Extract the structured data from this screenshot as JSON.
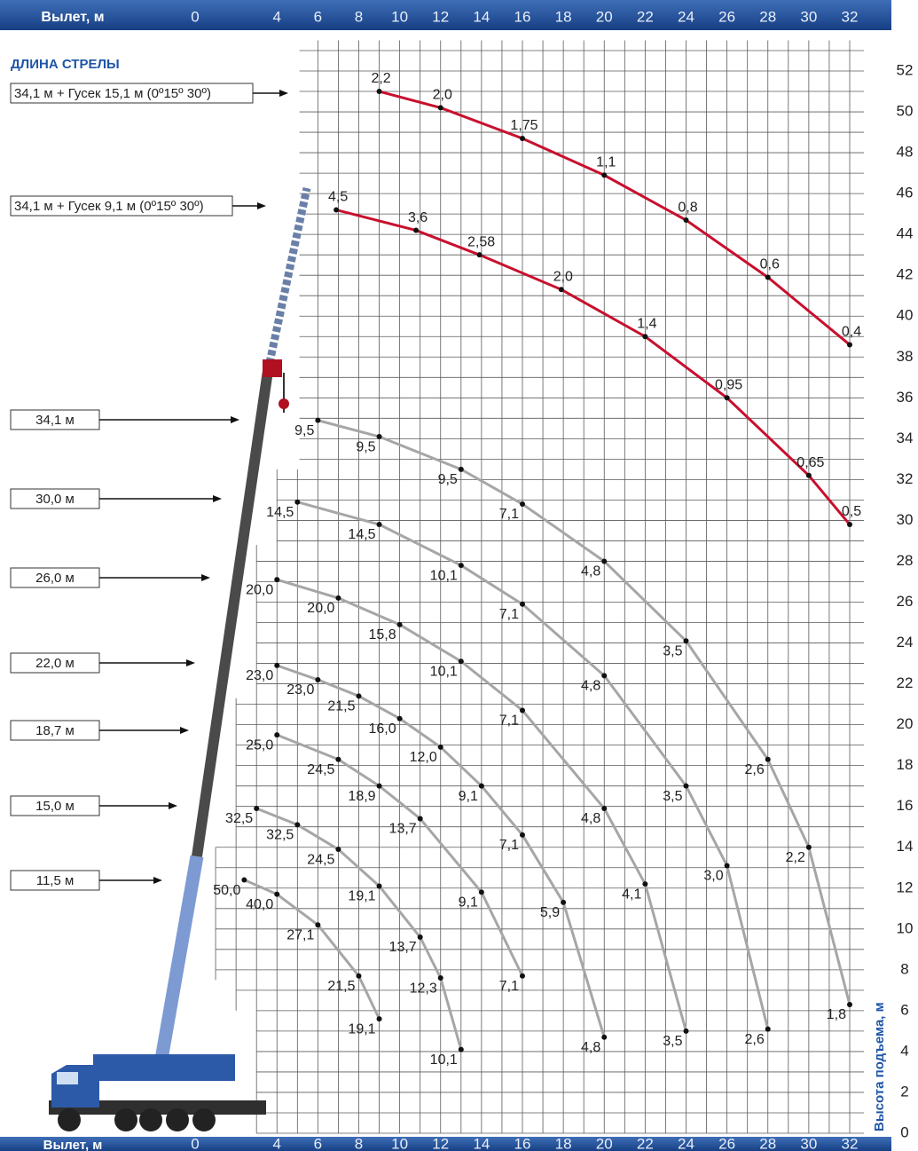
{
  "chart_data": {
    "type": "line",
    "x_label": "Вылет, м",
    "y_label": "Высота подъема, м",
    "legend_title": "ДЛИНА СТРЕЛЫ",
    "xlim": [
      0,
      32
    ],
    "ylim": [
      0,
      52
    ],
    "xticks": [
      0,
      4,
      6,
      8,
      10,
      12,
      14,
      16,
      18,
      20,
      22,
      24,
      26,
      28,
      30,
      32
    ],
    "yticks": [
      0,
      2,
      4,
      6,
      8,
      10,
      12,
      14,
      16,
      18,
      20,
      22,
      24,
      26,
      28,
      30,
      32,
      34,
      36,
      38,
      40,
      42,
      44,
      46,
      48,
      50,
      52
    ],
    "grid": true,
    "series": [
      {
        "name": "34,1 м + Гусек 15,1 м (0º15º 30º)",
        "color": "#c8102e",
        "x": [
          9,
          12,
          16,
          20,
          24,
          28,
          32
        ],
        "y": [
          51,
          50.2,
          48.7,
          46.9,
          44.7,
          41.9,
          38.6
        ],
        "load_labels": [
          "2,2",
          "2,0",
          "1,75",
          "1,1",
          "0,8",
          "0,6",
          "0,4"
        ]
      },
      {
        "name": "34,1 м + Гусек 9,1 м (0º15º 30º)",
        "color": "#c8102e",
        "x": [
          6.9,
          10.8,
          13.9,
          17.9,
          22,
          26,
          30,
          32
        ],
        "y": [
          45.2,
          44.2,
          43,
          41.3,
          39,
          36,
          32.2,
          29.8
        ],
        "load_labels": [
          "4,5",
          "3,6",
          "2,58",
          "2,0",
          "1,4",
          "0,95",
          "0,65",
          "0,5"
        ]
      },
      {
        "name": "34,1 м",
        "color": "#a6a6a6",
        "x": [
          6,
          9,
          13,
          16,
          20,
          24,
          28,
          30,
          32
        ],
        "y": [
          34.9,
          34.1,
          32.5,
          30.8,
          28,
          24.1,
          18.3,
          14,
          6.3
        ],
        "load_labels": [
          "9,5",
          "9,5",
          "9,5",
          "7,1",
          "4,8",
          "3,5",
          "2,6",
          "2,2",
          "1,8"
        ]
      },
      {
        "name": "30,0 м",
        "color": "#a6a6a6",
        "x": [
          5,
          9,
          13,
          16,
          20,
          24,
          26,
          28
        ],
        "y": [
          30.9,
          29.8,
          27.8,
          25.9,
          22.4,
          17,
          13.1,
          5.1
        ],
        "load_labels": [
          "14,5",
          "14,5",
          "10,1",
          "7,1",
          "4,8",
          "3,5",
          "3,0",
          "2,6"
        ]
      },
      {
        "name": "26,0 м",
        "color": "#a6a6a6",
        "x": [
          4,
          7,
          10,
          13,
          16,
          20,
          22,
          24
        ],
        "y": [
          27.1,
          26.2,
          24.9,
          23.1,
          20.7,
          15.9,
          12.2,
          5
        ],
        "load_labels": [
          "20,0",
          "20,0",
          "15,8",
          "10,1",
          "7,1",
          "4,8",
          "4,1",
          "3,5"
        ]
      },
      {
        "name": "22,0 м",
        "color": "#a6a6a6",
        "x": [
          4,
          6,
          8,
          10,
          12,
          14,
          16,
          18,
          20
        ],
        "y": [
          22.9,
          22.2,
          21.4,
          20.3,
          18.9,
          17,
          14.6,
          11.3,
          4.7
        ],
        "load_labels": [
          "23,0",
          "23,0",
          "21,5",
          "16,0",
          "12,0",
          "9,1",
          "7,1",
          "5,9",
          "4,8"
        ]
      },
      {
        "name": "18,7 м",
        "color": "#a6a6a6",
        "x": [
          4,
          7,
          9,
          11,
          14,
          16
        ],
        "y": [
          19.5,
          18.3,
          17,
          15.4,
          11.8,
          7.7
        ],
        "load_labels": [
          "25,0",
          "24,5",
          "18,9",
          "13,7",
          "9,1",
          "7,1"
        ]
      },
      {
        "name": "15,0 м",
        "color": "#a6a6a6",
        "x": [
          3,
          5,
          7,
          9,
          11,
          12,
          13
        ],
        "y": [
          15.9,
          15.1,
          13.9,
          12.1,
          9.6,
          7.6,
          4.1
        ],
        "load_labels": [
          "32,5",
          "32,5",
          "24,5",
          "19,1",
          "13,7",
          "12,3",
          "10,1"
        ]
      },
      {
        "name": "11,5 м",
        "color": "#a6a6a6",
        "x": [
          2.4,
          4,
          6,
          8,
          9
        ],
        "y": [
          12.4,
          11.7,
          10.2,
          7.7,
          5.6
        ],
        "load_labels": [
          "50,0",
          "40,0",
          "27,1",
          "21,5",
          "19,1"
        ]
      }
    ]
  }
}
